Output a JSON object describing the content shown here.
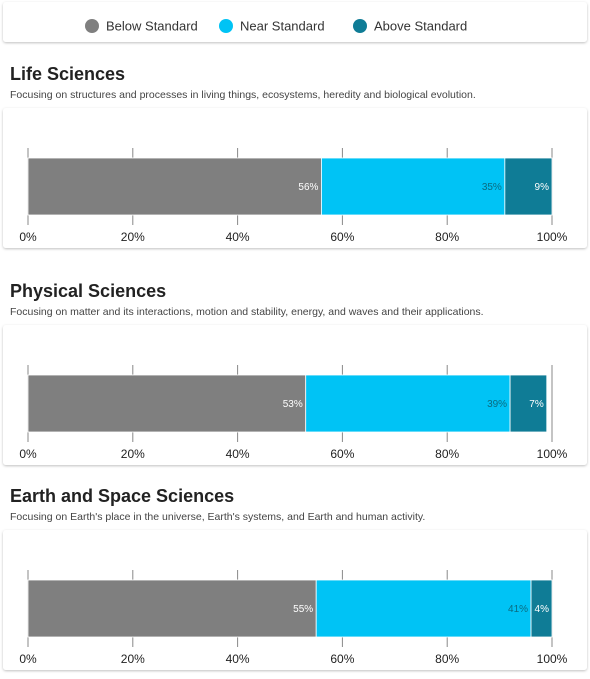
{
  "legend": {
    "series": [
      {
        "name": "Below Standard",
        "color": "#7f7f7f"
      },
      {
        "name": "Near Standard",
        "color": "#00c3f5"
      },
      {
        "name": "Above Standard",
        "color": "#0f7c96"
      }
    ]
  },
  "chart_data": [
    {
      "type": "bar",
      "title": "Life Sciences",
      "subtitle": "Focusing on structures and processes in living things, ecosystems, heredity and biological evolution.",
      "values": [
        56,
        35,
        9
      ],
      "value_labels": [
        "56%",
        "35%",
        "9%"
      ],
      "xlim": [
        0,
        100
      ],
      "xticks": [
        {
          "value": 0,
          "label": "0%"
        },
        {
          "value": 20,
          "label": "20%"
        },
        {
          "value": 40,
          "label": "40%"
        },
        {
          "value": 60,
          "label": "60%"
        },
        {
          "value": 80,
          "label": "80%"
        },
        {
          "value": 100,
          "label": "100%"
        }
      ]
    },
    {
      "type": "bar",
      "title": "Physical Sciences",
      "subtitle": "Focusing on matter and its interactions, motion and stability, energy, and waves and their applications.",
      "values": [
        53,
        39,
        7
      ],
      "value_labels": [
        "53%",
        "39%",
        "7%"
      ],
      "xlim": [
        0,
        100
      ],
      "xticks": [
        {
          "value": 0,
          "label": "0%"
        },
        {
          "value": 20,
          "label": "20%"
        },
        {
          "value": 40,
          "label": "40%"
        },
        {
          "value": 60,
          "label": "60%"
        },
        {
          "value": 80,
          "label": "80%"
        },
        {
          "value": 100,
          "label": "100%"
        }
      ]
    },
    {
      "type": "bar",
      "title": "Earth and Space Sciences",
      "subtitle": "Focusing on Earth's place in the universe, Earth's systems, and Earth and human activity.",
      "values": [
        55,
        41,
        4
      ],
      "value_labels": [
        "55%",
        "41%",
        "4%"
      ],
      "xlim": [
        0,
        100
      ],
      "xticks": [
        {
          "value": 0,
          "label": "0%"
        },
        {
          "value": 20,
          "label": "20%"
        },
        {
          "value": 40,
          "label": "40%"
        },
        {
          "value": 60,
          "label": "60%"
        },
        {
          "value": 80,
          "label": "80%"
        },
        {
          "value": 100,
          "label": "100%"
        }
      ]
    }
  ]
}
